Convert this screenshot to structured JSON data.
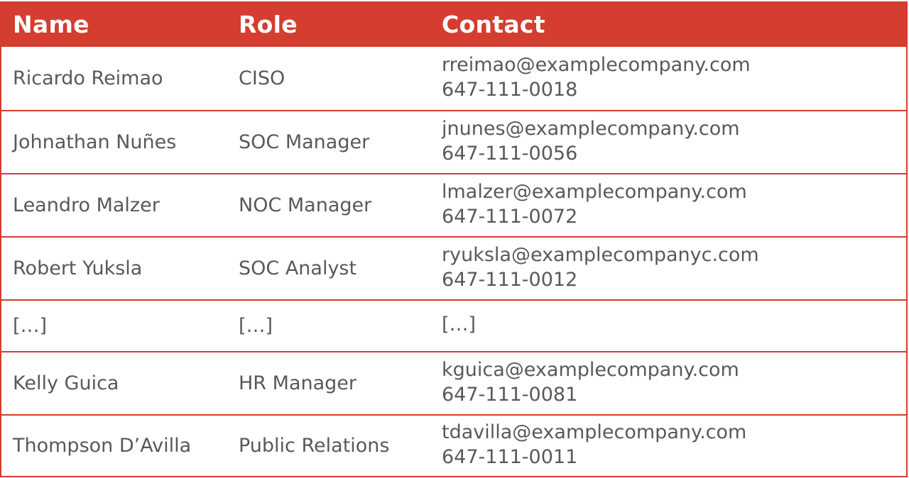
{
  "table": {
    "headers": {
      "name": "Name",
      "role": "Role",
      "contact": "Contact"
    },
    "rows": [
      {
        "name": "Ricardo Reimao",
        "role": "CISO",
        "email": "rreimao@examplecompany.com",
        "phone": "647-111-0018"
      },
      {
        "name": "Johnathan Nuñes",
        "role": "SOC Manager",
        "email": "jnunes@examplecompany.com",
        "phone": "647-111-0056"
      },
      {
        "name": "Leandro Malzer",
        "role": "NOC Manager",
        "email": "lmalzer@examplecompany.com",
        "phone": "647-111-0072"
      },
      {
        "name": "Robert Yuksla",
        "role": "SOC Analyst",
        "email": "ryuksla@examplecompanyc.com",
        "phone": "647-111-0012"
      },
      {
        "name": "[…]",
        "role": "[…]",
        "email": "[…]",
        "phone": ""
      },
      {
        "name": "Kelly Guica",
        "role": "HR Manager",
        "email": "kguica@examplecompany.com",
        "phone": "647-111-0081"
      },
      {
        "name": "Thompson D’Avilla",
        "role": "Public Relations",
        "email": "tdavilla@examplecompany.com",
        "phone": "647-111-0011"
      }
    ]
  },
  "colors": {
    "header_bg": "#d43d2f",
    "border": "#d43d2f",
    "text": "#595959"
  }
}
